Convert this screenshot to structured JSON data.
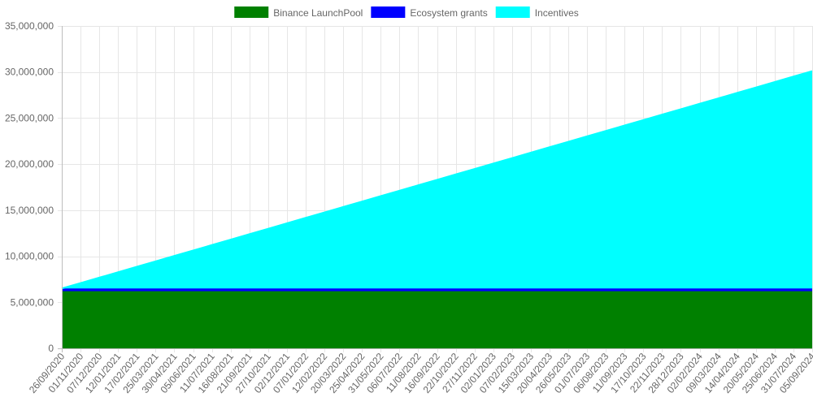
{
  "chart_data": {
    "type": "area",
    "stacked": true,
    "grid": true,
    "legend_position": "top",
    "ylim": [
      0,
      35000000
    ],
    "yticks": [
      0,
      5000000,
      10000000,
      15000000,
      20000000,
      25000000,
      30000000,
      35000000
    ],
    "ytick_labels": [
      "0",
      "5,000,000",
      "10,000,000",
      "15,000,000",
      "20,000,000",
      "25,000,000",
      "30,000,000",
      "35,000,000"
    ],
    "categories": [
      "26/09/2020",
      "01/11/2020",
      "07/12/2020",
      "12/01/2021",
      "17/02/2021",
      "25/03/2021",
      "30/04/2021",
      "05/06/2021",
      "11/07/2021",
      "16/08/2021",
      "21/09/2021",
      "27/10/2021",
      "02/12/2021",
      "07/01/2022",
      "12/02/2022",
      "20/03/2022",
      "25/04/2022",
      "31/05/2022",
      "06/07/2022",
      "11/08/2022",
      "16/09/2022",
      "22/10/2022",
      "27/11/2022",
      "02/01/2023",
      "07/02/2023",
      "15/03/2023",
      "20/04/2023",
      "26/05/2023",
      "01/07/2023",
      "06/08/2023",
      "11/09/2023",
      "17/10/2023",
      "22/11/2023",
      "28/12/2023",
      "02/02/2024",
      "09/03/2024",
      "14/04/2024",
      "20/05/2024",
      "25/06/2024",
      "31/07/2024",
      "05/09/2024"
    ],
    "series": [
      {
        "name": "Binance LaunchPool",
        "color": "#008000",
        "start": 6200000,
        "end": 6200000
      },
      {
        "name": "Ecosystem grants",
        "color": "#0000ff",
        "start": 300000,
        "end": 300000
      },
      {
        "name": "Incentives",
        "color": "#00ffff",
        "start": 0,
        "end": 23600000
      }
    ]
  }
}
